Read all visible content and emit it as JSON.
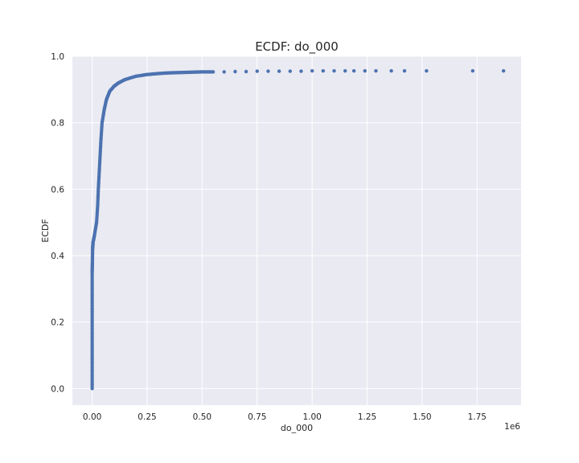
{
  "chart_data": {
    "type": "scatter",
    "title": "ECDF: do_000",
    "xlabel": "do_000",
    "ylabel": "ECDF",
    "x_scale_label": "1e6",
    "xlim": [
      -0.09,
      1.95
    ],
    "ylim": [
      -0.05,
      1.0
    ],
    "x_ticks": [
      0.0,
      0.25,
      0.5,
      0.75,
      1.0,
      1.25,
      1.5,
      1.75
    ],
    "x_tick_labels": [
      "0.00",
      "0.25",
      "0.50",
      "0.75",
      "1.00",
      "1.25",
      "1.50",
      "1.75"
    ],
    "y_ticks": [
      0.0,
      0.2,
      0.4,
      0.6,
      0.8,
      1.0
    ],
    "y_tick_labels": [
      "0.0",
      "0.2",
      "0.4",
      "0.6",
      "0.8",
      "1.0"
    ],
    "grid": true,
    "marker_color": "#4c72b0",
    "background_color": "#eaeaf2",
    "series": [
      {
        "points": [
          [
            0.0,
            0.0
          ],
          [
            0.0,
            0.05
          ],
          [
            0.0,
            0.1
          ],
          [
            0.0,
            0.15
          ],
          [
            0.0,
            0.2
          ],
          [
            0.0,
            0.25
          ],
          [
            0.0,
            0.3
          ],
          [
            0.0,
            0.35
          ],
          [
            0.001,
            0.38
          ],
          [
            0.002,
            0.42
          ],
          [
            0.004,
            0.44
          ],
          [
            0.01,
            0.46
          ],
          [
            0.02,
            0.5
          ],
          [
            0.025,
            0.55
          ],
          [
            0.028,
            0.6
          ],
          [
            0.032,
            0.65
          ],
          [
            0.036,
            0.7
          ],
          [
            0.04,
            0.75
          ],
          [
            0.045,
            0.8
          ],
          [
            0.055,
            0.84
          ],
          [
            0.065,
            0.87
          ],
          [
            0.08,
            0.895
          ],
          [
            0.1,
            0.91
          ],
          [
            0.12,
            0.92
          ],
          [
            0.15,
            0.93
          ],
          [
            0.2,
            0.94
          ],
          [
            0.25,
            0.945
          ],
          [
            0.3,
            0.948
          ],
          [
            0.35,
            0.95
          ],
          [
            0.4,
            0.951
          ],
          [
            0.45,
            0.952
          ],
          [
            0.5,
            0.953
          ],
          [
            0.55,
            0.953
          ],
          [
            0.6,
            0.953
          ],
          [
            0.65,
            0.954
          ],
          [
            0.7,
            0.954
          ],
          [
            0.75,
            0.955
          ],
          [
            0.8,
            0.955
          ],
          [
            0.85,
            0.955
          ],
          [
            0.9,
            0.955
          ],
          [
            0.95,
            0.955
          ],
          [
            1.0,
            0.956
          ],
          [
            1.05,
            0.956
          ],
          [
            1.1,
            0.956
          ],
          [
            1.15,
            0.956
          ],
          [
            1.19,
            0.956
          ],
          [
            1.24,
            0.956
          ],
          [
            1.29,
            0.956
          ],
          [
            1.36,
            0.956
          ],
          [
            1.42,
            0.956
          ],
          [
            1.52,
            0.956
          ],
          [
            1.73,
            0.956
          ],
          [
            1.87,
            0.956
          ]
        ]
      }
    ]
  }
}
